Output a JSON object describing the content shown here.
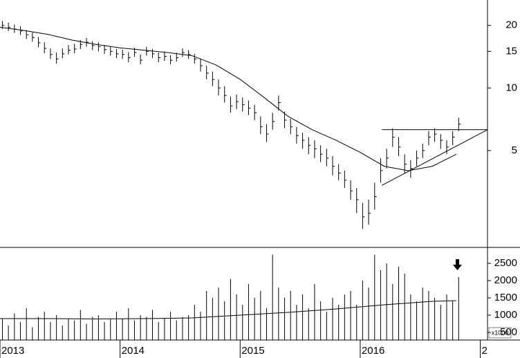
{
  "chart_data": [
    {
      "type": "ohlc",
      "log": true,
      "x": [
        2013.02,
        2013.07,
        2013.12,
        2013.17,
        2013.22,
        2013.27,
        2013.32,
        2013.37,
        2013.42,
        2013.47,
        2013.52,
        2013.57,
        2013.62,
        2013.67,
        2013.72,
        2013.77,
        2013.82,
        2013.87,
        2013.92,
        2013.97,
        2014.02,
        2014.07,
        2014.12,
        2014.17,
        2014.22,
        2014.27,
        2014.32,
        2014.37,
        2014.42,
        2014.47,
        2014.52,
        2014.57,
        2014.62,
        2014.67,
        2014.72,
        2014.77,
        2014.82,
        2014.87,
        2014.92,
        2014.97,
        2015.02,
        2015.07,
        2015.12,
        2015.17,
        2015.22,
        2015.27,
        2015.32,
        2015.37,
        2015.42,
        2015.47,
        2015.52,
        2015.57,
        2015.62,
        2015.67,
        2015.72,
        2015.77,
        2015.82,
        2015.87,
        2015.92,
        2015.97,
        2016.02,
        2016.07,
        2016.12,
        2016.17,
        2016.22,
        2016.27,
        2016.32,
        2016.37,
        2016.42,
        2016.47,
        2016.52,
        2016.57,
        2016.62,
        2016.67,
        2016.72,
        2016.77,
        2016.82
      ],
      "high": [
        21.0,
        20.6,
        20.2,
        19.8,
        19.0,
        18.5,
        17.6,
        16.6,
        15.5,
        14.8,
        15.5,
        16.1,
        16.3,
        17.0,
        17.4,
        16.8,
        16.6,
        16.1,
        15.8,
        15.4,
        15.3,
        14.9,
        15.6,
        14.5,
        15.8,
        15.4,
        14.8,
        15.0,
        14.4,
        14.8,
        15.5,
        15.2,
        14.6,
        13.8,
        12.8,
        12.0,
        11.0,
        10.2,
        9.1,
        9.3,
        9.0,
        8.7,
        8.3,
        7.3,
        6.7,
        7.6,
        9.2,
        7.7,
        7.1,
        6.5,
        6.1,
        5.8,
        5.6,
        5.3,
        5.1,
        4.7,
        4.3,
        4.0,
        3.6,
        3.3,
        2.8,
        2.9,
        3.5,
        4.6,
        5.1,
        6.4,
        5.8,
        4.8,
        4.5,
        5.0,
        5.4,
        6.2,
        6.4,
        6.0,
        5.6,
        6.2,
        7.2
      ],
      "low": [
        19.2,
        18.8,
        18.4,
        18.0,
        17.2,
        16.7,
        15.7,
        14.7,
        13.8,
        13.1,
        13.9,
        14.5,
        14.7,
        15.4,
        15.8,
        15.2,
        15.0,
        14.6,
        14.3,
        13.9,
        13.8,
        13.3,
        14.1,
        13.0,
        14.3,
        13.9,
        13.3,
        13.5,
        13.0,
        13.4,
        14.1,
        13.8,
        13.1,
        12.0,
        11.0,
        10.2,
        9.2,
        8.5,
        7.6,
        7.9,
        7.7,
        7.4,
        7.0,
        6.0,
        5.5,
        6.3,
        7.8,
        6.4,
        6.0,
        5.4,
        5.1,
        4.8,
        4.6,
        4.4,
        4.2,
        3.8,
        3.6,
        3.3,
        2.9,
        2.5,
        2.1,
        2.2,
        2.6,
        3.5,
        4.1,
        5.2,
        4.7,
        3.9,
        3.7,
        4.2,
        4.6,
        5.3,
        5.5,
        5.1,
        4.8,
        5.3,
        6.2
      ],
      "close": [
        20.0,
        19.6,
        19.2,
        18.8,
        18.0,
        17.5,
        16.5,
        15.5,
        14.5,
        13.8,
        14.6,
        15.2,
        15.4,
        16.2,
        16.6,
        16.0,
        15.8,
        15.3,
        15.0,
        14.6,
        14.5,
        14.0,
        14.8,
        13.6,
        15.0,
        14.6,
        14.0,
        14.2,
        13.6,
        14.0,
        14.8,
        14.5,
        13.8,
        12.8,
        11.8,
        11.0,
        10.0,
        9.2,
        8.2,
        8.6,
        8.3,
        8.0,
        7.6,
        6.5,
        6.0,
        6.9,
        8.5,
        7.0,
        6.5,
        5.9,
        5.6,
        5.3,
        5.1,
        4.8,
        4.6,
        4.2,
        3.9,
        3.6,
        3.2,
        2.9,
        2.4,
        2.5,
        3.0,
        4.0,
        4.6,
        5.8,
        5.2,
        4.3,
        4.1,
        4.6,
        5.0,
        5.8,
        6.0,
        5.6,
        5.2,
        5.8,
        6.7
      ],
      "ma": {
        "x": [
          2013.0,
          2013.2,
          2013.4,
          2013.6,
          2013.8,
          2014.0,
          2014.2,
          2014.4,
          2014.6,
          2014.8,
          2015.0,
          2015.2,
          2015.4,
          2015.6,
          2015.8,
          2016.0,
          2016.2,
          2016.4,
          2016.6,
          2016.8
        ],
        "values": [
          19.6,
          18.9,
          18.1,
          17.0,
          16.2,
          15.6,
          15.2,
          14.8,
          14.3,
          12.9,
          11.0,
          9.0,
          7.3,
          6.3,
          5.6,
          4.9,
          4.2,
          4.0,
          4.2,
          4.8
        ]
      },
      "trendlines": [
        {
          "x": [
            2016.18,
            2017.06
          ],
          "values": [
            6.3,
            6.3
          ]
        },
        {
          "x": [
            2016.18,
            2017.06
          ],
          "values": [
            3.4,
            6.3
          ]
        }
      ],
      "xlim": [
        2013.0,
        2017.06
      ],
      "ylim": [
        1.71,
        26.5
      ],
      "yticks": [
        5,
        10,
        15,
        20
      ]
    },
    {
      "type": "bar",
      "x": [
        2013.02,
        2013.07,
        2013.12,
        2013.17,
        2013.22,
        2013.27,
        2013.32,
        2013.37,
        2013.42,
        2013.47,
        2013.52,
        2013.57,
        2013.62,
        2013.67,
        2013.72,
        2013.77,
        2013.82,
        2013.87,
        2013.92,
        2013.97,
        2014.02,
        2014.07,
        2014.12,
        2014.17,
        2014.22,
        2014.27,
        2014.32,
        2014.37,
        2014.42,
        2014.47,
        2014.52,
        2014.57,
        2014.62,
        2014.67,
        2014.72,
        2014.77,
        2014.82,
        2014.87,
        2014.92,
        2014.97,
        2015.02,
        2015.07,
        2015.12,
        2015.17,
        2015.22,
        2015.27,
        2015.32,
        2015.37,
        2015.42,
        2015.47,
        2015.52,
        2015.57,
        2015.62,
        2015.67,
        2015.72,
        2015.77,
        2015.82,
        2015.87,
        2015.92,
        2015.97,
        2016.02,
        2016.07,
        2016.12,
        2016.17,
        2016.22,
        2016.27,
        2016.32,
        2016.37,
        2016.42,
        2016.47,
        2016.52,
        2016.57,
        2016.62,
        2016.67,
        2016.72,
        2016.77,
        2016.82
      ],
      "values": [
        900,
        700,
        1050,
        800,
        1200,
        650,
        950,
        1100,
        800,
        1000,
        700,
        900,
        850,
        1150,
        750,
        950,
        1000,
        800,
        900,
        1100,
        900,
        1200,
        850,
        1000,
        950,
        1150,
        800,
        900,
        1100,
        850,
        950,
        1000,
        1300,
        1100,
        1700,
        1500,
        1800,
        1400,
        2050,
        1600,
        1300,
        1900,
        1500,
        1700,
        1200,
        2750,
        1800,
        1500,
        1700,
        1300,
        1600,
        1200,
        1900,
        1400,
        1100,
        1500,
        1300,
        1600,
        1700,
        1300,
        2000,
        1800,
        2750,
        2300,
        2500,
        1900,
        2400,
        2200,
        1600,
        1400,
        1800,
        1700,
        1500,
        1300,
        1600,
        1400,
        2100
      ],
      "ma": {
        "x": [
          2013.0,
          2013.4,
          2013.8,
          2014.2,
          2014.6,
          2015.0,
          2015.4,
          2015.8,
          2016.2,
          2016.6,
          2016.8
        ],
        "values": [
          900,
          900,
          890,
          900,
          920,
          1000,
          1080,
          1180,
          1300,
          1400,
          1420
        ]
      },
      "unit_label": "x1000",
      "xlim": [
        2013.0,
        2017.06
      ],
      "ylim": [
        320,
        2920
      ],
      "yticks": [
        500,
        1000,
        1500,
        2000,
        2500
      ],
      "xticks": [
        2013,
        2014,
        2015,
        2016,
        {
          "value": 2017,
          "label": "2"
        }
      ]
    }
  ]
}
